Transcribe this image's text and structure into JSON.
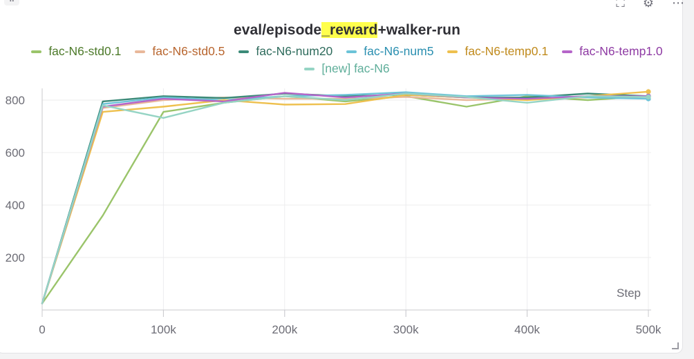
{
  "header": {
    "title_before": "eval/episode",
    "title_highlight": "_reward",
    "title_after": "+walker-run"
  },
  "chart_data": {
    "type": "line",
    "title": "eval/episode_reward+walker-run",
    "xlabel": "Step",
    "ylabel": "",
    "xlim": [
      0,
      500000
    ],
    "ylim": [
      0,
      860
    ],
    "x_ticks": [
      0,
      100000,
      200000,
      300000,
      400000,
      500000
    ],
    "x_tick_labels": [
      "0",
      "100k",
      "200k",
      "300k",
      "400k",
      "500k"
    ],
    "y_ticks": [
      200,
      400,
      600,
      800
    ],
    "y_tick_labels": [
      "200",
      "400",
      "600",
      "800"
    ],
    "grid": true,
    "legend_position": "top-center",
    "series": [
      {
        "name": "fac-N6-std0.1",
        "color": "#9ac46a",
        "label_color": "#4d7a2a",
        "x": [
          0,
          50000,
          100000,
          150000,
          200000,
          250000,
          300000,
          350000,
          400000,
          450000,
          500000
        ],
        "y": [
          25,
          360,
          755,
          790,
          815,
          795,
          815,
          775,
          815,
          800,
          815
        ]
      },
      {
        "name": "fac-N6-std0.5",
        "color": "#e9b89a",
        "label_color": "#b8652e",
        "x": [
          0,
          50000,
          100000,
          150000,
          200000,
          250000,
          300000,
          350000,
          400000,
          450000,
          500000
        ],
        "y": [
          25,
          770,
          800,
          810,
          805,
          805,
          812,
          800,
          805,
          810,
          812
        ]
      },
      {
        "name": "fac-N6-num20",
        "color": "#3b8a78",
        "label_color": "#2e6b5c",
        "x": [
          0,
          50000,
          100000,
          150000,
          200000,
          250000,
          300000,
          350000,
          400000,
          450000,
          500000
        ],
        "y": [
          25,
          795,
          815,
          808,
          825,
          815,
          820,
          810,
          810,
          825,
          815
        ]
      },
      {
        "name": "fac-N6-num5",
        "color": "#6cc3d8",
        "label_color": "#2a8fb0",
        "x": [
          0,
          50000,
          100000,
          150000,
          200000,
          250000,
          300000,
          350000,
          400000,
          450000,
          500000
        ],
        "y": [
          25,
          785,
          810,
          800,
          815,
          820,
          830,
          815,
          820,
          810,
          805
        ]
      },
      {
        "name": "fac-N6-temp0.1",
        "color": "#eec04e",
        "label_color": "#c08a1c",
        "x": [
          0,
          50000,
          100000,
          150000,
          200000,
          250000,
          300000,
          350000,
          400000,
          450000,
          500000
        ],
        "y": [
          25,
          755,
          775,
          800,
          783,
          785,
          820,
          810,
          800,
          815,
          832
        ]
      },
      {
        "name": "fac-N6-temp1.0",
        "color": "#b565c9",
        "label_color": "#8e3aa3",
        "x": [
          0,
          50000,
          100000,
          150000,
          200000,
          250000,
          300000,
          350000,
          400000,
          450000,
          500000
        ],
        "y": [
          25,
          775,
          805,
          795,
          828,
          810,
          825,
          810,
          805,
          815,
          815
        ]
      },
      {
        "name": "[new] fac-N6",
        "color": "#95d4c4",
        "label_color": "#5fae9a",
        "x": [
          0,
          50000,
          100000,
          150000,
          200000,
          250000,
          300000,
          350000,
          400000,
          450000,
          500000
        ],
        "y": [
          25,
          780,
          732,
          790,
          815,
          800,
          825,
          812,
          790,
          815,
          812
        ]
      }
    ]
  }
}
